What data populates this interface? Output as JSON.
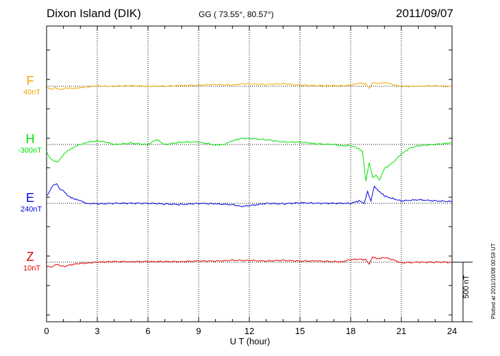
{
  "header": {
    "title": "Dixon Island (DIK)",
    "coords": "GG ( 73.55°,  80.57°)",
    "date": "2011/09/07"
  },
  "chart_data": {
    "type": "line",
    "xlabel": "U T (hour)",
    "xlim": [
      0,
      24
    ],
    "x_ticks": [
      "0",
      "3",
      "6",
      "9",
      "12",
      "15",
      "18",
      "21",
      "24"
    ],
    "scale_label": "500 nT",
    "plotted_note": "Plotted at 2011/10/08 00:59 UT",
    "series": [
      {
        "name": "F",
        "base": "40nT",
        "color": "#f0a800",
        "x": [
          0,
          0.3,
          0.5,
          0.8,
          1.2,
          1.6,
          2,
          2.5,
          3,
          3.5,
          4,
          5,
          6,
          7,
          8,
          9,
          10,
          11,
          11.5,
          12,
          13,
          14,
          15,
          16,
          17,
          17.5,
          18,
          18.5,
          18.9,
          19.1,
          19.3,
          19.5,
          19.8,
          20.2,
          20.6,
          21,
          22,
          23,
          24
        ],
        "y": [
          -5,
          -25,
          -15,
          -25,
          -15,
          -20,
          -10,
          -5,
          5,
          0,
          0,
          5,
          0,
          0,
          5,
          10,
          15,
          10,
          20,
          20,
          15,
          20,
          10,
          5,
          5,
          5,
          10,
          25,
          20,
          -15,
          30,
          20,
          30,
          25,
          10,
          0,
          0,
          5,
          -5
        ]
      },
      {
        "name": "H",
        "base": "-300nT",
        "color": "#00e000",
        "x": [
          0,
          0.2,
          0.4,
          0.7,
          0.9,
          1.2,
          1.6,
          2,
          2.5,
          3,
          3.5,
          4,
          5,
          6,
          6.5,
          7,
          8,
          9,
          10,
          10.5,
          11,
          11.5,
          12,
          13,
          14,
          15,
          16,
          17,
          17.5,
          18,
          18.4,
          18.7,
          18.9,
          19.1,
          19.3,
          19.5,
          19.7,
          20,
          20.5,
          21,
          21.5,
          22,
          23,
          24
        ],
        "y": [
          -60,
          -110,
          -140,
          -140,
          -100,
          -60,
          -20,
          0,
          20,
          30,
          20,
          0,
          10,
          0,
          40,
          0,
          20,
          20,
          -5,
          0,
          30,
          50,
          50,
          40,
          20,
          20,
          5,
          0,
          -10,
          -10,
          -30,
          -60,
          -300,
          -150,
          -280,
          -250,
          -300,
          -200,
          -150,
          -80,
          -30,
          -10,
          0,
          15
        ]
      },
      {
        "name": "E",
        "base": "240nT",
        "color": "#0000e0",
        "x": [
          0,
          0.2,
          0.4,
          0.6,
          0.8,
          1,
          1.3,
          1.6,
          2,
          2.4,
          3,
          4,
          5,
          6,
          7,
          8,
          9,
          10,
          11,
          11.5,
          12,
          13,
          14,
          15,
          16,
          17,
          18,
          18.5,
          18.8,
          19,
          19.2,
          19.4,
          19.7,
          20,
          20.5,
          21,
          22,
          23,
          24
        ],
        "y": [
          60,
          110,
          150,
          160,
          120,
          100,
          60,
          40,
          20,
          0,
          -5,
          0,
          0,
          0,
          -5,
          -10,
          0,
          -5,
          -10,
          -25,
          -20,
          0,
          -5,
          5,
          0,
          0,
          0,
          20,
          0,
          100,
          20,
          140,
          100,
          60,
          40,
          20,
          30,
          20,
          15
        ]
      },
      {
        "name": "Z",
        "base": "10nT",
        "color": "#e00000",
        "x": [
          0,
          0.3,
          0.6,
          1,
          1.5,
          2,
          2.5,
          3,
          4,
          5,
          6,
          7,
          8,
          9,
          10,
          11,
          12,
          13,
          14,
          15,
          16,
          17,
          17.5,
          18,
          18.5,
          18.9,
          19.1,
          19.3,
          19.6,
          20,
          20.5,
          21,
          22,
          23,
          24
        ],
        "y": [
          -30,
          -40,
          -20,
          -35,
          -20,
          -10,
          -5,
          0,
          5,
          5,
          5,
          5,
          5,
          10,
          10,
          15,
          15,
          10,
          15,
          10,
          10,
          5,
          5,
          20,
          25,
          20,
          -10,
          40,
          30,
          40,
          20,
          -5,
          0,
          0,
          0
        ]
      }
    ]
  }
}
